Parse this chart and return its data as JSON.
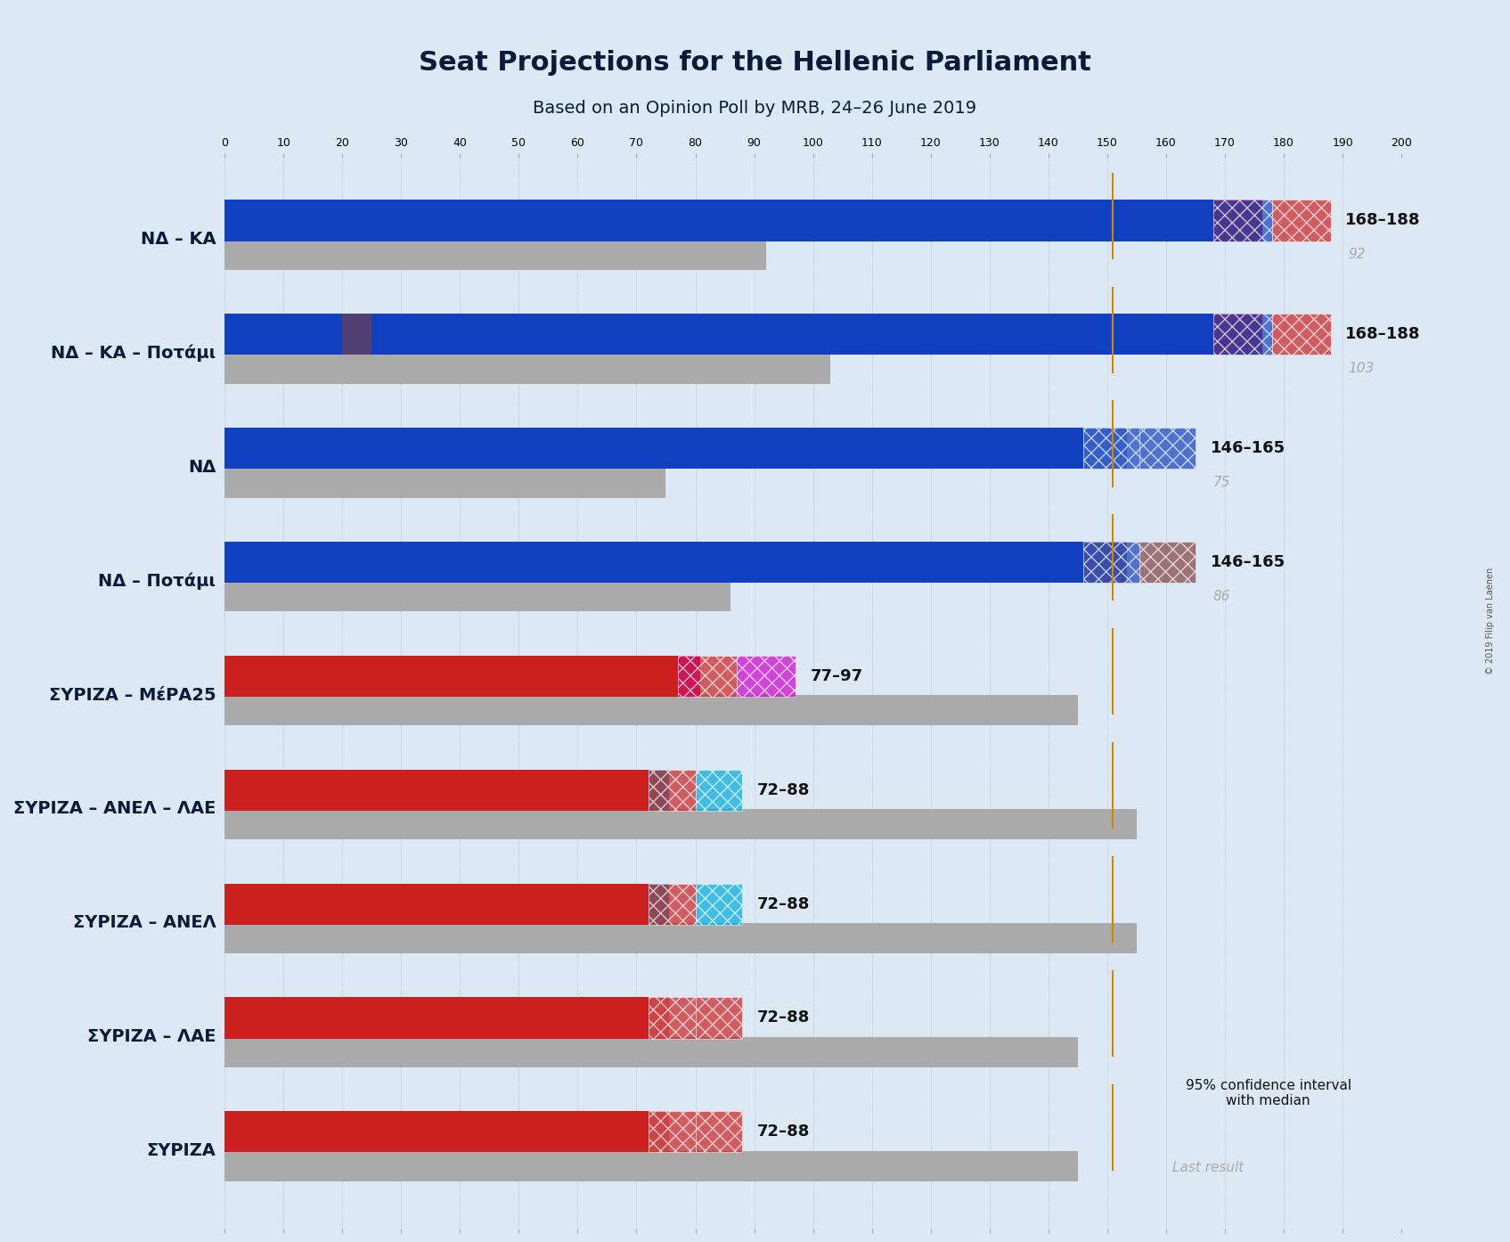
{
  "title": "Seat Projections for the Hellenic Parliament",
  "subtitle": "Based on an Opinion Poll by MRB, 24–26 June 2019",
  "copyright": "© 2019 Filip van Laenen",
  "background_color": "#dce9f5",
  "bar_rows": [
    {
      "label": "ΝΔ – ΚΑ",
      "underline": false,
      "segments": [
        {
          "value": 168,
          "color": "#1040c0",
          "alpha": 1.0
        },
        {
          "value": 20,
          "color": "#cc2020",
          "alpha": 1.0
        }
      ],
      "ci_low": 168,
      "ci_high": 188,
      "median": 178,
      "last_result": 92,
      "range_label": "168–188",
      "hatch_colors": [
        "#1040c0",
        "#cc2020"
      ],
      "majority_line": 151
    },
    {
      "label": "ΝΔ – ΚΑ – Ποτάμι",
      "underline": false,
      "segments": [
        {
          "value": 168,
          "color": "#1040c0",
          "alpha": 1.0
        },
        {
          "value": 20,
          "color": "#cc2020",
          "alpha": 1.0
        }
      ],
      "extra_segment": {
        "value": 10,
        "color": "#804040",
        "alpha": 0.6
      },
      "ci_low": 168,
      "ci_high": 188,
      "median": 178,
      "last_result": 103,
      "range_label": "168–188",
      "hatch_colors": [
        "#1040c0",
        "#cc2020"
      ],
      "majority_line": 151
    },
    {
      "label": "ΝΔ",
      "underline": false,
      "segments": [
        {
          "value": 146,
          "color": "#1040c0",
          "alpha": 1.0
        },
        {
          "value": 19,
          "color": "#1040c0",
          "alpha": 0.4
        }
      ],
      "ci_low": 146,
      "ci_high": 165,
      "median": 156,
      "last_result": 75,
      "range_label": "146–165",
      "hatch_colors": [
        "#1040c0",
        "#1040c0"
      ],
      "majority_line": 151
    },
    {
      "label": "ΝΔ – Ποτάμι",
      "underline": false,
      "segments": [
        {
          "value": 146,
          "color": "#1040c0",
          "alpha": 1.0
        },
        {
          "value": 19,
          "color": "#804040",
          "alpha": 0.7
        }
      ],
      "ci_low": 146,
      "ci_high": 165,
      "median": 156,
      "last_result": 86,
      "range_label": "146–165",
      "hatch_colors": [
        "#1040c0",
        "#804040"
      ],
      "majority_line": 151
    },
    {
      "label": "ΣΥΡΙΖΑ – ΜέΡΑ25",
      "underline": false,
      "segments": [
        {
          "value": 77,
          "color": "#cc2020",
          "alpha": 1.0
        },
        {
          "value": 20,
          "color": "#cc00cc",
          "alpha": 1.0
        }
      ],
      "ci_low": 77,
      "ci_high": 97,
      "median": 87,
      "last_result": 145,
      "range_label": "77–97",
      "hatch_colors": [
        "#cc2020",
        "#cc00cc"
      ],
      "majority_line": 151
    },
    {
      "label": "ΣΥΡΙΖΑ – ΑΝΕΛ – ΛΑΕ",
      "underline": false,
      "segments": [
        {
          "value": 72,
          "color": "#cc2020",
          "alpha": 1.0
        },
        {
          "value": 16,
          "color": "#00aadd",
          "alpha": 1.0
        }
      ],
      "ci_low": 72,
      "ci_high": 88,
      "median": 80,
      "last_result": 155,
      "range_label": "72–88",
      "hatch_colors": [
        "#cc2020",
        "#00aadd"
      ],
      "majority_line": 151
    },
    {
      "label": "ΣΥΡΙΖΑ – ΑΝΕΛ",
      "underline": false,
      "segments": [
        {
          "value": 72,
          "color": "#cc2020",
          "alpha": 1.0
        },
        {
          "value": 16,
          "color": "#00aadd",
          "alpha": 1.0
        }
      ],
      "ci_low": 72,
      "ci_high": 88,
      "median": 80,
      "last_result": 155,
      "range_label": "72–88",
      "hatch_colors": [
        "#cc2020",
        "#00aadd"
      ],
      "majority_line": 151
    },
    {
      "label": "ΣΥΡΙΖΑ – ΛΑΕ",
      "underline": false,
      "segments": [
        {
          "value": 72,
          "color": "#cc2020",
          "alpha": 1.0
        },
        {
          "value": 16,
          "color": "#cc2020",
          "alpha": 0.4
        }
      ],
      "ci_low": 72,
      "ci_high": 88,
      "median": 80,
      "last_result": 145,
      "range_label": "72–88",
      "hatch_colors": [
        "#cc2020",
        "#cc2020"
      ],
      "majority_line": 151
    },
    {
      "label": "ΣΥΡΙΖΑ",
      "underline": true,
      "segments": [
        {
          "value": 72,
          "color": "#cc2020",
          "alpha": 1.0
        },
        {
          "value": 16,
          "color": "#cc2020",
          "alpha": 0.4
        }
      ],
      "ci_low": 72,
      "ci_high": 88,
      "median": 80,
      "last_result": 145,
      "range_label": "72–88",
      "hatch_colors": [
        "#cc2020",
        "#cc2020"
      ],
      "majority_line": 151
    }
  ],
  "x_max": 200,
  "majority_seats": 151,
  "majority_color": "#cc8800",
  "last_result_color": "#aaaaaa",
  "ci_color": "#888888",
  "grid_color": "#aaaaaa",
  "tick_interval": 10
}
